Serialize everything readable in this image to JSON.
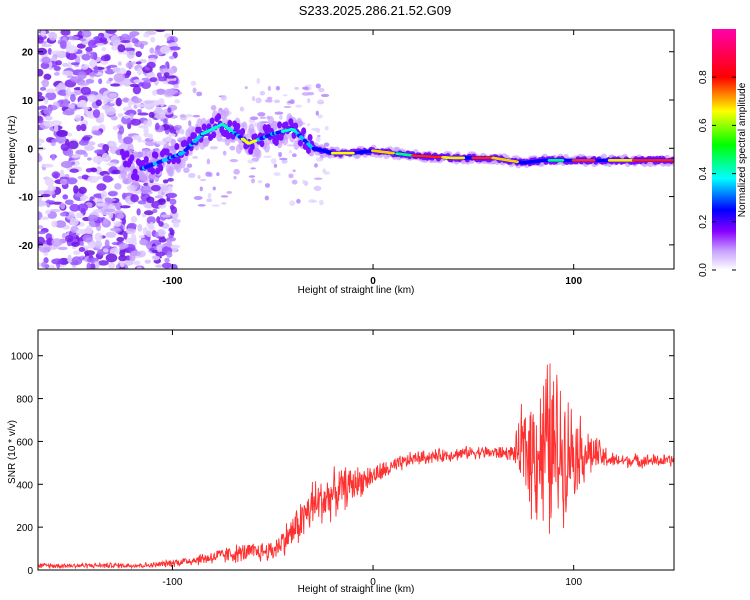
{
  "title": "S233.2025.286.21.52.G09",
  "chart_data": [
    {
      "type": "heatmap",
      "xlabel": "Height of straight line (km)",
      "ylabel": "Frequency (Hz)",
      "xlim": [
        -167,
        150
      ],
      "ylim": [
        -25,
        24.5
      ],
      "xticks": [
        -100,
        0,
        100
      ],
      "yticks": [
        -20,
        -10,
        0,
        10,
        20
      ],
      "colorbar": {
        "label": "Normalized spectral amplitude",
        "range": [
          0,
          1
        ],
        "ticks": [
          0.0,
          0.2,
          0.4,
          0.6,
          0.8
        ],
        "tick_labels": [
          "0.0",
          "0.2",
          "0.4",
          "0.6",
          "0.8"
        ],
        "colormap": [
          "#ffffff",
          "#c8a0ff",
          "#8800ff",
          "#0000ff",
          "#00ffff",
          "#00ff00",
          "#ffff00",
          "#ff0000",
          "#ff00aa"
        ]
      },
      "trace": [
        {
          "x": -120,
          "y": -5
        },
        {
          "x": -95,
          "y": -1
        },
        {
          "x": -85,
          "y": 3
        },
        {
          "x": -75,
          "y": 5
        },
        {
          "x": -62,
          "y": 1
        },
        {
          "x": -50,
          "y": 3
        },
        {
          "x": -40,
          "y": 4
        },
        {
          "x": -30,
          "y": 0
        },
        {
          "x": -20,
          "y": -1
        },
        {
          "x": -10,
          "y": -1
        },
        {
          "x": 0,
          "y": -0.5
        },
        {
          "x": 20,
          "y": -1.5
        },
        {
          "x": 40,
          "y": -2
        },
        {
          "x": 60,
          "y": -2
        },
        {
          "x": 75,
          "y": -3
        },
        {
          "x": 85,
          "y": -2.5
        },
        {
          "x": 100,
          "y": -2.5
        },
        {
          "x": 120,
          "y": -2.5
        },
        {
          "x": 150,
          "y": -2.5
        }
      ]
    },
    {
      "type": "line",
      "xlabel": "Height of straight line (km)",
      "ylabel": "SNR (10 * v/v)",
      "xlim": [
        -167,
        150
      ],
      "ylim": [
        0,
        1120
      ],
      "xticks": [
        -100,
        0,
        100
      ],
      "yticks": [
        0,
        200,
        400,
        600,
        800,
        1000
      ],
      "series": [
        {
          "name": "SNR",
          "color": "#ff3030",
          "envelope": [
            {
              "x": -167,
              "base": 20,
              "amp": 15
            },
            {
              "x": -110,
              "base": 22,
              "amp": 15
            },
            {
              "x": -90,
              "base": 45,
              "amp": 30
            },
            {
              "x": -70,
              "base": 75,
              "amp": 50
            },
            {
              "x": -50,
              "base": 90,
              "amp": 60
            },
            {
              "x": -40,
              "base": 180,
              "amp": 100
            },
            {
              "x": -30,
              "base": 300,
              "amp": 150
            },
            {
              "x": -15,
              "base": 380,
              "amp": 120
            },
            {
              "x": 0,
              "base": 440,
              "amp": 60
            },
            {
              "x": 20,
              "base": 520,
              "amp": 40
            },
            {
              "x": 50,
              "base": 550,
              "amp": 35
            },
            {
              "x": 70,
              "base": 545,
              "amp": 40
            },
            {
              "x": 75,
              "base": 560,
              "amp": 280
            },
            {
              "x": 88,
              "base": 560,
              "amp": 540
            },
            {
              "x": 100,
              "base": 560,
              "amp": 250
            },
            {
              "x": 110,
              "base": 540,
              "amp": 110
            },
            {
              "x": 120,
              "base": 510,
              "amp": 40
            },
            {
              "x": 150,
              "base": 510,
              "amp": 35
            }
          ]
        }
      ]
    }
  ]
}
